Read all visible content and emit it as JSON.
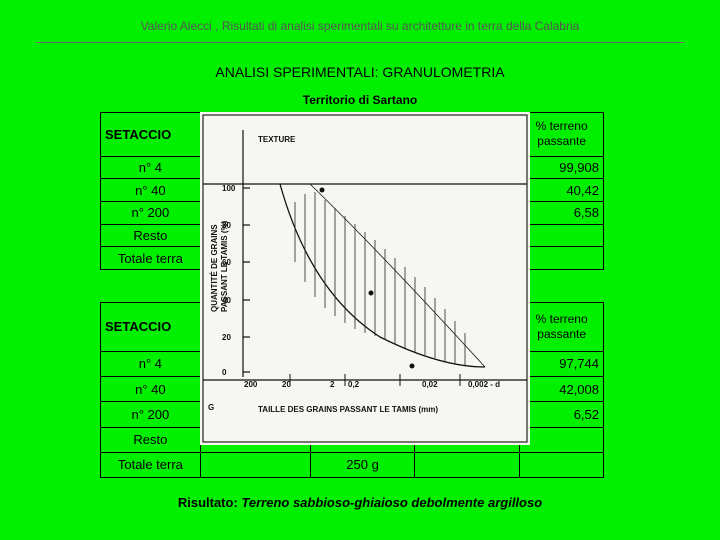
{
  "header": "Valerio Alecci , Risultati di analisi sperimentali su architetture in terra della Calabria",
  "title": "ANALISI SPERIMENTALI: GRANULOMETRIA",
  "subtitle": "Territorio di Sartano",
  "tables": [
    {
      "header": [
        "SETACCIO",
        "% terreno passante"
      ],
      "rows": [
        [
          "n° 4",
          "",
          "99,908"
        ],
        [
          "n° 40",
          "",
          "40,42"
        ],
        [
          "n° 200",
          "",
          "6,58"
        ],
        [
          "Resto",
          "",
          ""
        ],
        [
          "Totale terra",
          "",
          ""
        ]
      ]
    },
    {
      "header": [
        "SETACCIO",
        "% terreno passante"
      ],
      "rows": [
        [
          "n° 4",
          "",
          "97,744"
        ],
        [
          "n° 40",
          "",
          "42,008"
        ],
        [
          "n° 200",
          "",
          "6,52"
        ],
        [
          "Resto",
          "",
          ""
        ],
        [
          "Totale terra",
          "250 g",
          ""
        ]
      ]
    }
  ],
  "image": {
    "title": "TEXTURE",
    "y_label_1": "QUANTITÉ DE GRAINS",
    "y_label_2": "PASSANT LE TAMIS (%)",
    "yticks": [
      "100",
      "80",
      "60",
      "40",
      "20",
      "0"
    ],
    "xticks": [
      "200",
      "20",
      "2",
      "0,2",
      "0,02",
      "0,002 - d"
    ],
    "corner": "G",
    "x_label": "TAILLE DES GRAINS PASSANT LE TAMIS (mm)"
  },
  "result": {
    "label": "Risultato:",
    "text": "Terreno sabbioso-ghiaioso debolmente argilloso"
  }
}
